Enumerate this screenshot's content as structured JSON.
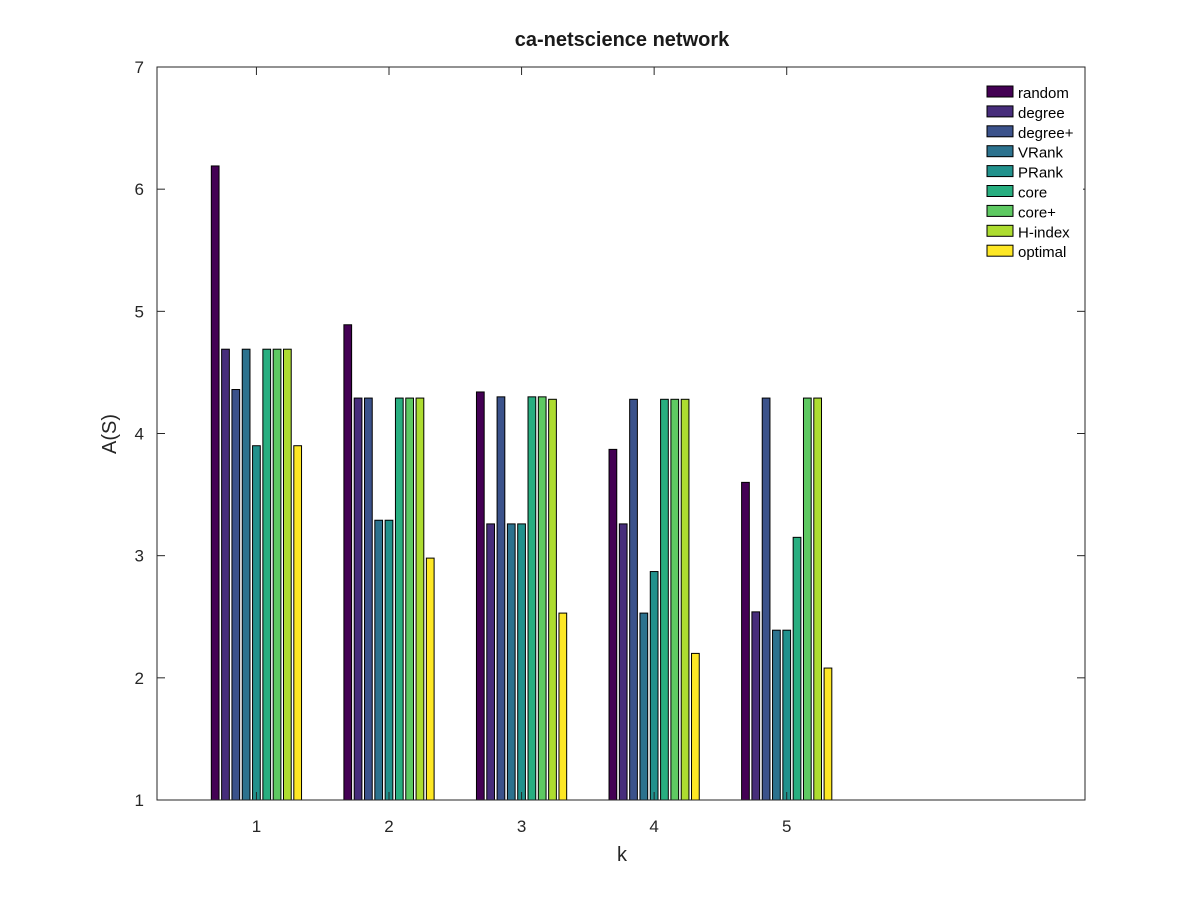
{
  "chart_data": {
    "type": "bar",
    "title": "ca-netscience network",
    "xlabel": "k",
    "ylabel": "A(S)",
    "categories": [
      "1",
      "2",
      "3",
      "4",
      "5"
    ],
    "x_range": [
      0.25,
      7.25
    ],
    "ylim": [
      1,
      7
    ],
    "yticks": [
      "1",
      "2",
      "3",
      "4",
      "5",
      "6",
      "7"
    ],
    "grid": false,
    "legend_position": "top-right",
    "series": [
      {
        "name": "random",
        "color": "#440154",
        "values": [
          6.19,
          4.89,
          4.34,
          3.87,
          3.6
        ]
      },
      {
        "name": "degree",
        "color": "#472d7b",
        "values": [
          4.69,
          4.29,
          3.26,
          3.26,
          2.54
        ]
      },
      {
        "name": "degree+",
        "color": "#3b528b",
        "values": [
          4.36,
          4.29,
          4.3,
          4.28,
          4.29
        ]
      },
      {
        "name": "VRank",
        "color": "#2c728e",
        "values": [
          4.69,
          3.29,
          3.26,
          2.53,
          2.39
        ]
      },
      {
        "name": "PRank",
        "color": "#21918c",
        "values": [
          3.9,
          3.29,
          3.26,
          2.87,
          2.39
        ]
      },
      {
        "name": "core",
        "color": "#28ae80",
        "values": [
          4.69,
          4.29,
          4.3,
          4.28,
          3.15
        ]
      },
      {
        "name": "core+",
        "color": "#5ec962",
        "values": [
          4.69,
          4.29,
          4.3,
          4.28,
          4.29
        ]
      },
      {
        "name": "H-index",
        "color": "#addc30",
        "values": [
          4.69,
          4.29,
          4.28,
          4.28,
          4.29
        ]
      },
      {
        "name": "optimal",
        "color": "#fde725",
        "values": [
          3.9,
          2.98,
          2.53,
          2.2,
          2.08
        ]
      }
    ]
  }
}
